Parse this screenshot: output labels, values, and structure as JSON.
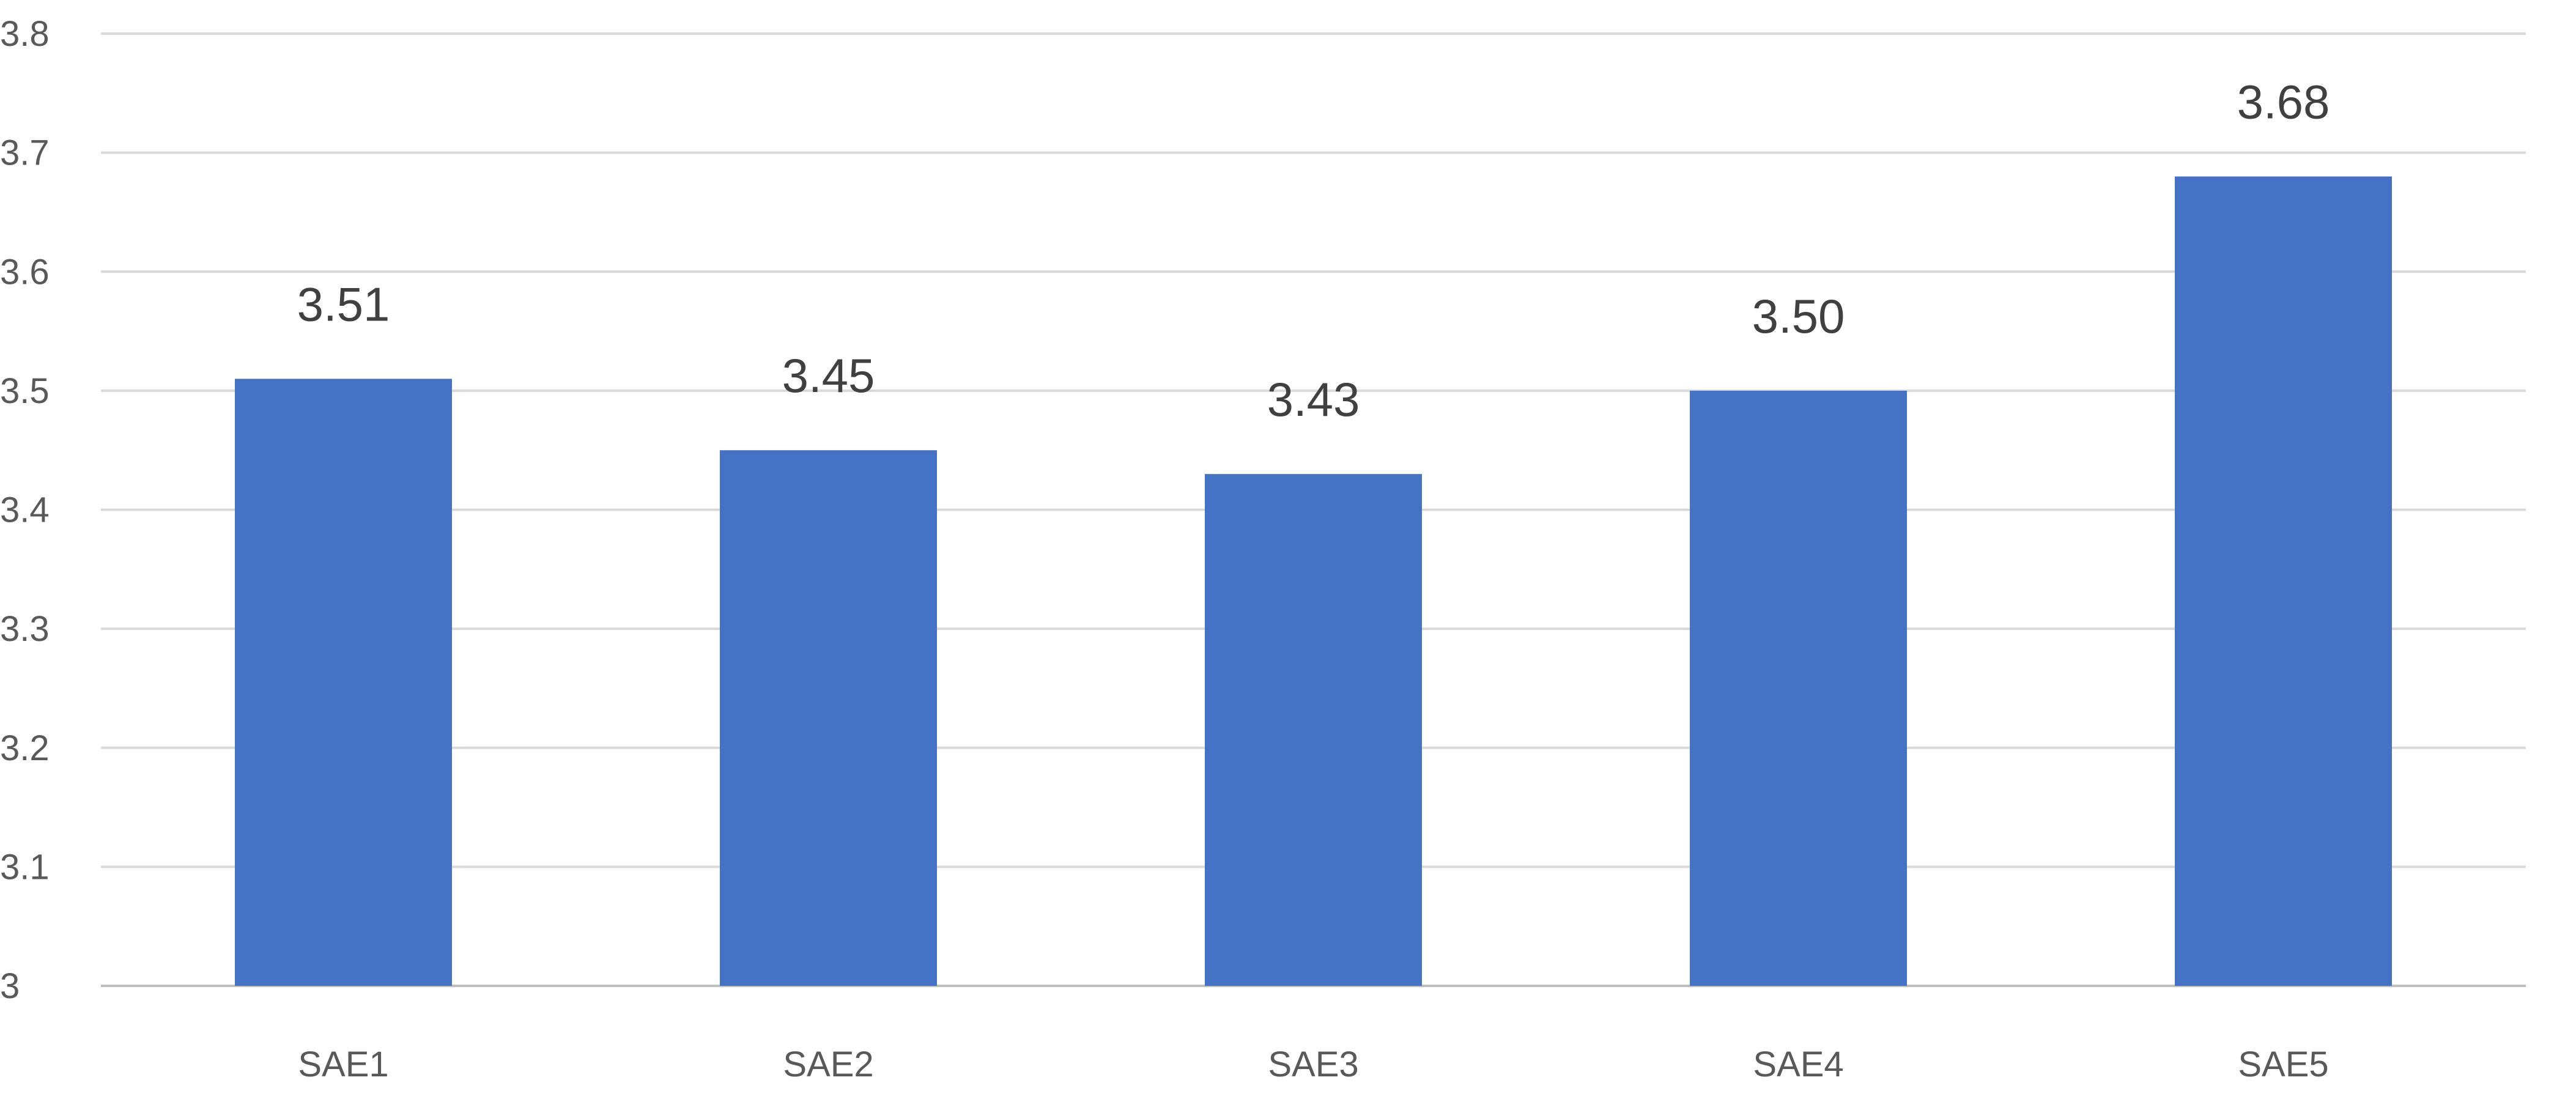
{
  "chart_data": {
    "type": "bar",
    "categories": [
      "SAE1",
      "SAE2",
      "SAE3",
      "SAE4",
      "SAE5"
    ],
    "values": [
      3.51,
      3.45,
      3.43,
      3.5,
      3.68
    ],
    "data_labels": [
      "3.51",
      "3.45",
      "3.43",
      "3.50",
      "3.68"
    ],
    "title": "",
    "xlabel": "",
    "ylabel": "",
    "ylim": [
      3,
      3.8
    ],
    "yticks": [
      "3",
      "3.1",
      "3.2",
      "3.3",
      "3.4",
      "3.5",
      "3.6",
      "3.7",
      "3.8"
    ],
    "ytick_values": [
      3,
      3.1,
      3.2,
      3.3,
      3.4,
      3.5,
      3.6,
      3.7,
      3.8
    ],
    "grid": true,
    "legend": "none",
    "bar_color": "#4472c4"
  }
}
